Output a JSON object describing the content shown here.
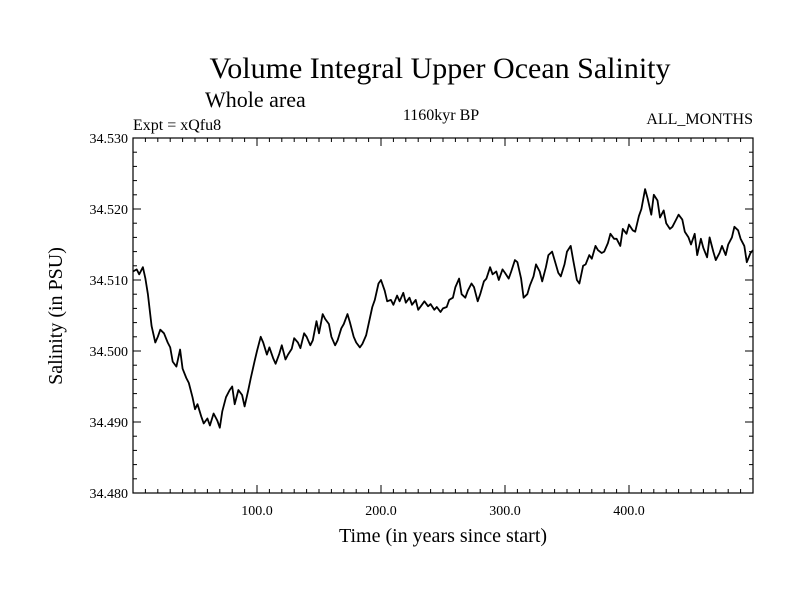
{
  "chart_data": {
    "type": "line",
    "title": "Volume Integral Upper Ocean Salinity",
    "subtitle": "Whole area",
    "annotations": {
      "left": "Expt = xQfu8",
      "center": "1160kyr BP",
      "right": "ALL_MONTHS"
    },
    "xlabel": "Time (in years since start)",
    "ylabel": "Salinity (in PSU)",
    "xlim": [
      0,
      500
    ],
    "ylim": [
      34.48,
      34.53
    ],
    "x_ticks": [
      {
        "value": 100,
        "label": "100.0"
      },
      {
        "value": 200,
        "label": "200.0"
      },
      {
        "value": 300,
        "label": "300.0"
      },
      {
        "value": 400,
        "label": "400.0"
      }
    ],
    "y_ticks": [
      {
        "value": 34.48,
        "label": "34.480"
      },
      {
        "value": 34.49,
        "label": "34.490"
      },
      {
        "value": 34.5,
        "label": "34.500"
      },
      {
        "value": 34.51,
        "label": "34.510"
      },
      {
        "value": 34.52,
        "label": "34.520"
      },
      {
        "value": 34.53,
        "label": "34.530"
      }
    ],
    "series": [
      {
        "name": "Upper Ocean Salinity",
        "color": "#000000",
        "x": [
          0,
          3,
          5,
          8,
          10,
          12,
          15,
          18,
          20,
          22,
          25,
          28,
          30,
          32,
          35,
          38,
          40,
          43,
          45,
          48,
          50,
          52,
          55,
          57,
          60,
          62,
          65,
          68,
          70,
          72,
          75,
          78,
          80,
          82,
          85,
          88,
          90,
          93,
          95,
          98,
          100,
          103,
          105,
          108,
          110,
          113,
          115,
          118,
          120,
          123,
          125,
          128,
          130,
          133,
          135,
          138,
          140,
          143,
          145,
          148,
          150,
          153,
          155,
          158,
          160,
          163,
          165,
          168,
          170,
          173,
          175,
          178,
          180,
          183,
          185,
          188,
          190,
          193,
          195,
          198,
          200,
          203,
          205,
          208,
          210,
          213,
          215,
          218,
          220,
          223,
          225,
          228,
          230,
          233,
          235,
          238,
          240,
          243,
          245,
          248,
          250,
          253,
          255,
          258,
          260,
          263,
          265,
          268,
          270,
          273,
          275,
          278,
          280,
          283,
          285,
          288,
          290,
          293,
          295,
          298,
          300,
          303,
          305,
          308,
          310,
          313,
          315,
          318,
          320,
          323,
          325,
          328,
          330,
          333,
          335,
          338,
          340,
          343,
          345,
          348,
          350,
          353,
          355,
          358,
          360,
          363,
          365,
          368,
          370,
          373,
          375,
          378,
          380,
          383,
          385,
          388,
          390,
          393,
          395,
          398,
          400,
          403,
          405,
          408,
          410,
          413,
          415,
          418,
          420,
          423,
          425,
          428,
          430,
          433,
          435,
          438,
          440,
          443,
          445,
          448,
          450,
          453,
          455,
          458,
          460,
          463,
          465,
          468,
          470,
          473,
          475,
          478,
          480,
          483,
          485,
          488,
          490,
          493,
          495,
          498,
          500
        ],
        "values": [
          34.5112,
          34.5115,
          34.5108,
          34.5118,
          34.5102,
          34.508,
          34.5035,
          34.5012,
          34.502,
          34.503,
          34.5025,
          34.5012,
          34.5005,
          34.4985,
          34.4978,
          34.5002,
          34.4975,
          34.4962,
          34.4955,
          34.4935,
          34.4918,
          34.4925,
          34.4908,
          34.4898,
          34.4905,
          34.4895,
          34.4912,
          34.4902,
          34.4892,
          34.4915,
          34.4935,
          34.4945,
          34.495,
          34.4925,
          34.4945,
          34.4938,
          34.4922,
          34.4945,
          34.4962,
          34.4985,
          34.5,
          34.502,
          34.5012,
          34.4995,
          34.5005,
          34.499,
          34.4982,
          34.4996,
          34.5008,
          34.4988,
          34.4995,
          34.5003,
          34.5018,
          34.5012,
          34.5004,
          34.5025,
          34.502,
          34.5008,
          34.5015,
          34.5042,
          34.5025,
          34.5052,
          34.5045,
          34.5038,
          34.502,
          34.5008,
          34.5015,
          34.5032,
          34.5038,
          34.5052,
          34.504,
          34.502,
          34.5012,
          34.5005,
          34.501,
          34.5022,
          34.5038,
          34.5062,
          34.5072,
          34.5095,
          34.51,
          34.5085,
          34.507,
          34.5072,
          34.5065,
          34.5078,
          34.507,
          34.5082,
          34.5068,
          34.5075,
          34.5065,
          34.5072,
          34.5058,
          34.5065,
          34.507,
          34.5063,
          34.5066,
          34.5058,
          34.5062,
          34.5055,
          34.506,
          34.5062,
          34.5072,
          34.5075,
          34.509,
          34.5102,
          34.508,
          34.5075,
          34.5085,
          34.5095,
          34.509,
          34.507,
          34.508,
          34.5098,
          34.5102,
          34.5118,
          34.5108,
          34.5112,
          34.51,
          34.5115,
          34.511,
          34.5102,
          34.5112,
          34.5128,
          34.5125,
          34.5102,
          34.5075,
          34.508,
          34.5092,
          34.5105,
          34.5122,
          34.5112,
          34.5098,
          34.5118,
          34.5135,
          34.514,
          34.5128,
          34.511,
          34.5105,
          34.5122,
          34.514,
          34.5148,
          34.5128,
          34.51,
          34.5095,
          34.512,
          34.5122,
          34.5135,
          34.513,
          34.5148,
          34.5142,
          34.5138,
          34.514,
          34.5152,
          34.5165,
          34.5158,
          34.5158,
          34.5148,
          34.5172,
          34.5165,
          34.5178,
          34.517,
          34.5168,
          34.519,
          34.52,
          34.5228,
          34.5215,
          34.5192,
          34.522,
          34.5212,
          34.5188,
          34.5198,
          34.518,
          34.5172,
          34.5175,
          34.5185,
          34.5192,
          34.5185,
          34.5168,
          34.516,
          34.515,
          34.5165,
          34.5135,
          34.5158,
          34.5145,
          34.5132,
          34.516,
          34.514,
          34.5128,
          34.5138,
          34.5148,
          34.5135,
          34.515,
          34.516,
          34.5175,
          34.517,
          34.5158,
          34.5148,
          34.5125,
          34.5138,
          34.5142
        ]
      }
    ]
  }
}
